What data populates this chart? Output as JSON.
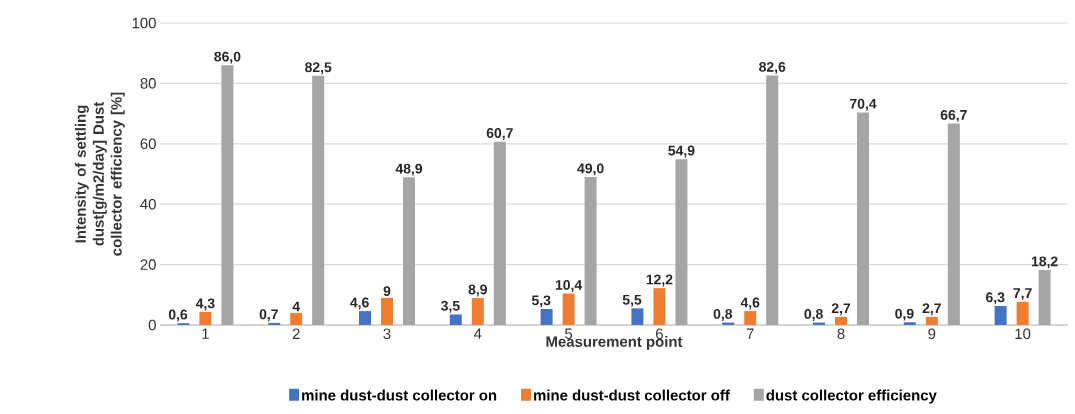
{
  "chart_data": {
    "type": "bar",
    "xlabel": "Measurement point",
    "ylabel": "Intensity of settling dust[g/m2/day] Dust collector efficiency [%]",
    "categories": [
      "1",
      "2",
      "3",
      "4",
      "5",
      "6",
      "7",
      "8",
      "9",
      "10"
    ],
    "series": [
      {
        "name": "mine dust-dust collector on",
        "color": "#4472c4",
        "values": [
          0.6,
          0.7,
          4.6,
          3.5,
          5.3,
          5.5,
          0.8,
          0.8,
          0.9,
          6.3
        ],
        "value_labels": [
          "0,6",
          "0,7",
          "4,6",
          "3,5",
          "5,3",
          "5,5",
          "0,8",
          "0,8",
          "0,9",
          "6,3"
        ]
      },
      {
        "name": "mine dust-dust collector off",
        "color": "#ed7d31",
        "values": [
          4.3,
          4.0,
          9.0,
          8.9,
          10.4,
          12.2,
          4.6,
          2.7,
          2.7,
          7.7
        ],
        "value_labels": [
          "4,3",
          "4",
          "9",
          "8,9",
          "10,4",
          "12,2",
          "4,6",
          "2,7",
          "2,7",
          "7,7"
        ]
      },
      {
        "name": "dust collector efficiency",
        "color": "#a5a5a5",
        "values": [
          86.0,
          82.5,
          48.9,
          60.7,
          49.0,
          54.9,
          82.6,
          70.4,
          66.7,
          18.2
        ],
        "value_labels": [
          "86,0",
          "82,5",
          "48,9",
          "60,7",
          "49,0",
          "54,9",
          "82,6",
          "70,4",
          "66,7",
          "18,2"
        ]
      }
    ],
    "ylim": [
      0,
      100
    ],
    "yticks": [
      0,
      20,
      40,
      60,
      80,
      100
    ],
    "grid": "y",
    "legend": "bottom"
  }
}
